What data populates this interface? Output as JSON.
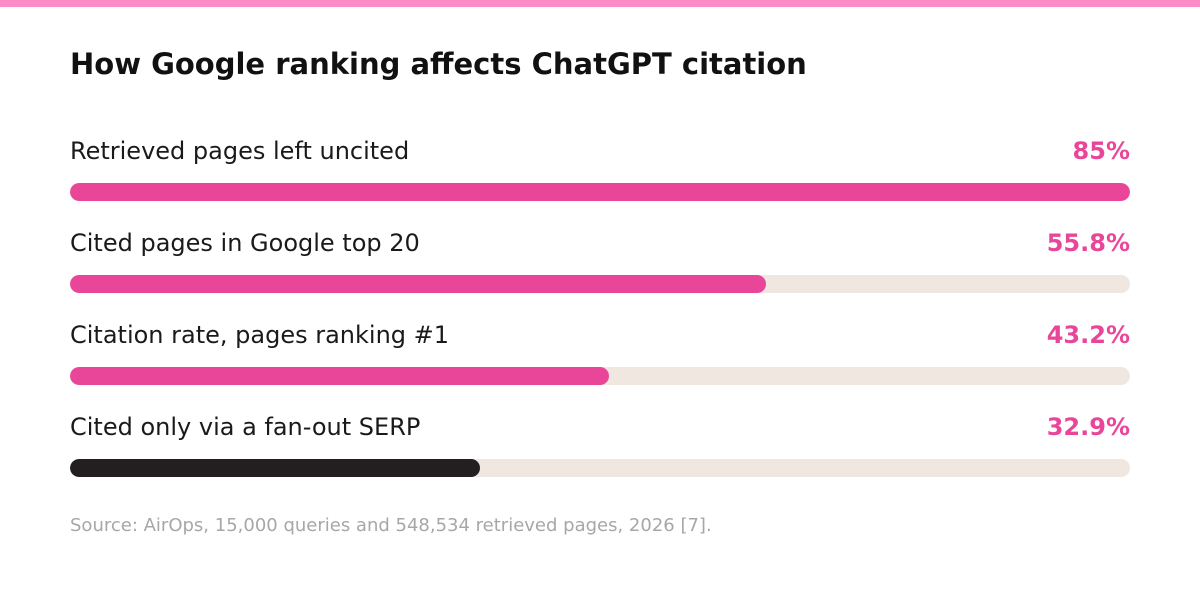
{
  "colors": {
    "stripe": "#fc8cc7",
    "accent": "#e94699",
    "dark": "#231f20",
    "track": "#f1e7e1",
    "value_text": "#e94699"
  },
  "title": "How Google ranking affects ChatGPT citation",
  "source": "Source: AirOps, 15,000 queries and 548,534 retrieved pages, 2026 [7].",
  "chart_data": {
    "type": "bar",
    "orientation": "horizontal",
    "title": "How Google ranking affects ChatGPT citation",
    "xlim": [
      0,
      85
    ],
    "grid": false,
    "categories": [
      "Retrieved pages left uncited",
      "Cited pages in Google top 20",
      "Citation rate, pages ranking #1",
      "Cited only via a fan-out SERP"
    ],
    "values": [
      85,
      55.8,
      43.2,
      32.9
    ],
    "value_labels": [
      "85%",
      "55.8%",
      "43.2%",
      "32.9%"
    ],
    "bar_colors": [
      "#e94699",
      "#e94699",
      "#e94699",
      "#231f20"
    ]
  }
}
